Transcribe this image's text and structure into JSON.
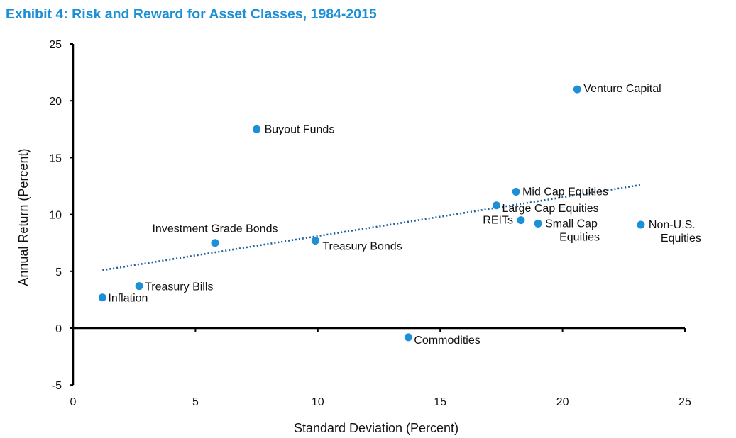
{
  "title": "Exhibit 4: Risk and Reward for Asset Classes, 1984-2015",
  "colors": {
    "title": "#1c8fd6",
    "points": "#1b8fd8",
    "trendline": "#1f5f9e",
    "axis": "#000000"
  },
  "chart_data": {
    "type": "scatter",
    "title": "Exhibit 4: Risk and Reward for Asset Classes, 1984-2015",
    "xlabel": "Standard Deviation (Percent)",
    "ylabel": "Annual Return (Percent)",
    "xlim": [
      0,
      25
    ],
    "ylim": [
      -5,
      25
    ],
    "xticks": [
      0,
      5,
      10,
      15,
      20,
      25
    ],
    "yticks": [
      -5,
      0,
      5,
      10,
      15,
      20,
      25
    ],
    "grid": false,
    "legend": "none",
    "trendline": {
      "style": "dotted",
      "type": "linear",
      "from": [
        1.2,
        5.1
      ],
      "to": [
        23.2,
        12.6
      ]
    },
    "points": [
      {
        "label": "Inflation",
        "x": 1.2,
        "y": 2.7
      },
      {
        "label": "Treasury Bills",
        "x": 2.7,
        "y": 3.7
      },
      {
        "label": "Investment Grade Bonds",
        "x": 5.8,
        "y": 7.5
      },
      {
        "label": "Buyout Funds",
        "x": 7.5,
        "y": 17.5
      },
      {
        "label": "Treasury Bonds",
        "x": 9.9,
        "y": 7.7
      },
      {
        "label": "Commodities",
        "x": 13.7,
        "y": -0.8
      },
      {
        "label": "Large Cap Equities",
        "x": 17.3,
        "y": 10.8
      },
      {
        "label": "Mid Cap Equities",
        "x": 18.1,
        "y": 12.0
      },
      {
        "label": "REITs",
        "x": 18.3,
        "y": 9.5
      },
      {
        "label": "Small Cap Equities",
        "x": 19.0,
        "y": 9.2
      },
      {
        "label": "Venture Capital",
        "x": 20.6,
        "y": 21.0
      },
      {
        "label": "Non-U.S. Equities",
        "x": 23.2,
        "y": 9.1
      }
    ]
  }
}
